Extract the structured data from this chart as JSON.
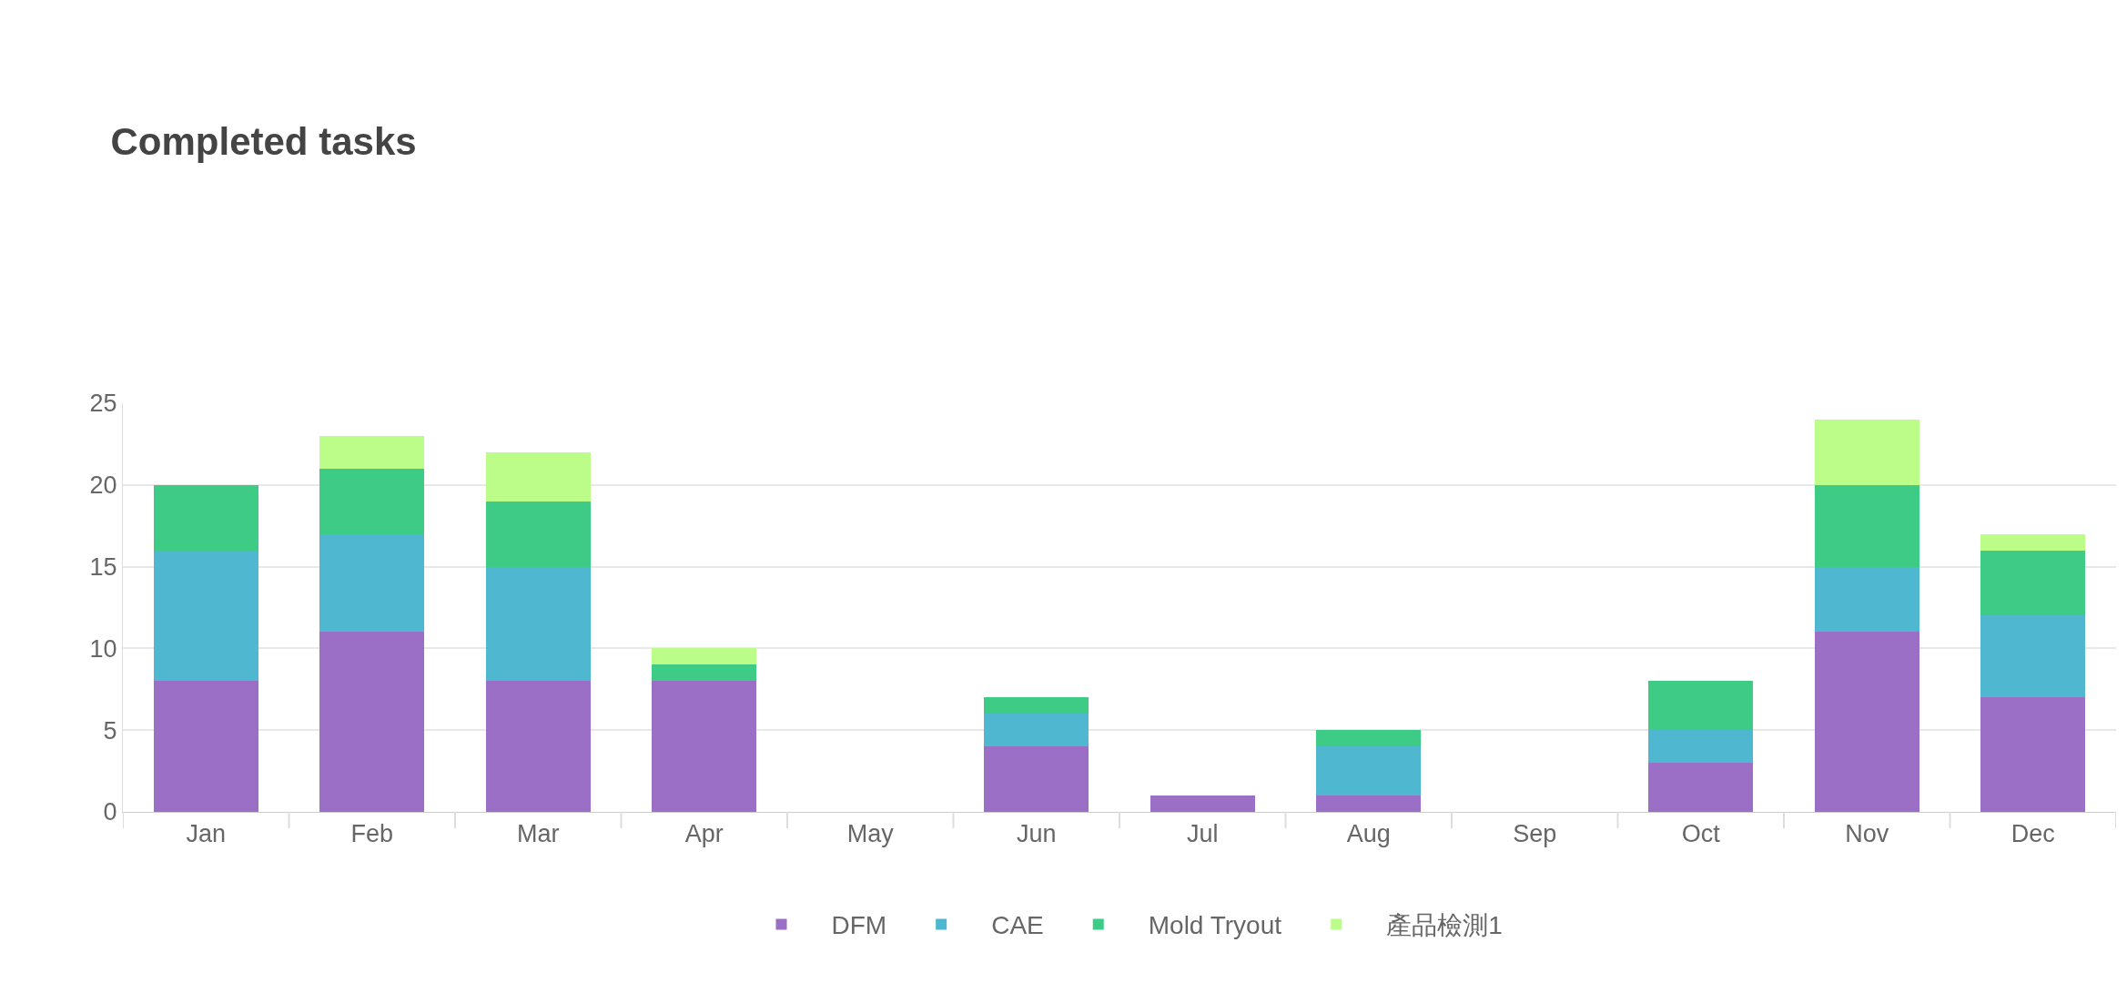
{
  "chart_data": {
    "type": "bar",
    "title": "Completed tasks",
    "stacked": true,
    "categories": [
      "Jan",
      "Feb",
      "Mar",
      "Apr",
      "May",
      "Jun",
      "Jul",
      "Aug",
      "Sep",
      "Oct",
      "Nov",
      "Dec"
    ],
    "series": [
      {
        "name": "DFM",
        "color": "#9b6fc6",
        "values": [
          8,
          11,
          8,
          8,
          0,
          4,
          1,
          1,
          0,
          3,
          11,
          7
        ]
      },
      {
        "name": "CAE",
        "color": "#4fb8d0",
        "values": [
          8,
          6,
          7,
          0,
          0,
          2,
          0,
          3,
          0,
          2,
          4,
          5
        ]
      },
      {
        "name": "Mold Tryout",
        "color": "#3ecb86",
        "values": [
          4,
          4,
          4,
          1,
          0,
          1,
          0,
          1,
          0,
          3,
          5,
          4
        ]
      },
      {
        "name": "產品檢測1",
        "color": "#bbfd88",
        "values": [
          0,
          2,
          3,
          1,
          0,
          0,
          0,
          0,
          0,
          0,
          4,
          1
        ]
      }
    ],
    "ylim": [
      0,
      25
    ],
    "yticks": [
      0,
      5,
      10,
      15,
      20,
      25
    ],
    "grid": true,
    "legend": "bottom"
  }
}
